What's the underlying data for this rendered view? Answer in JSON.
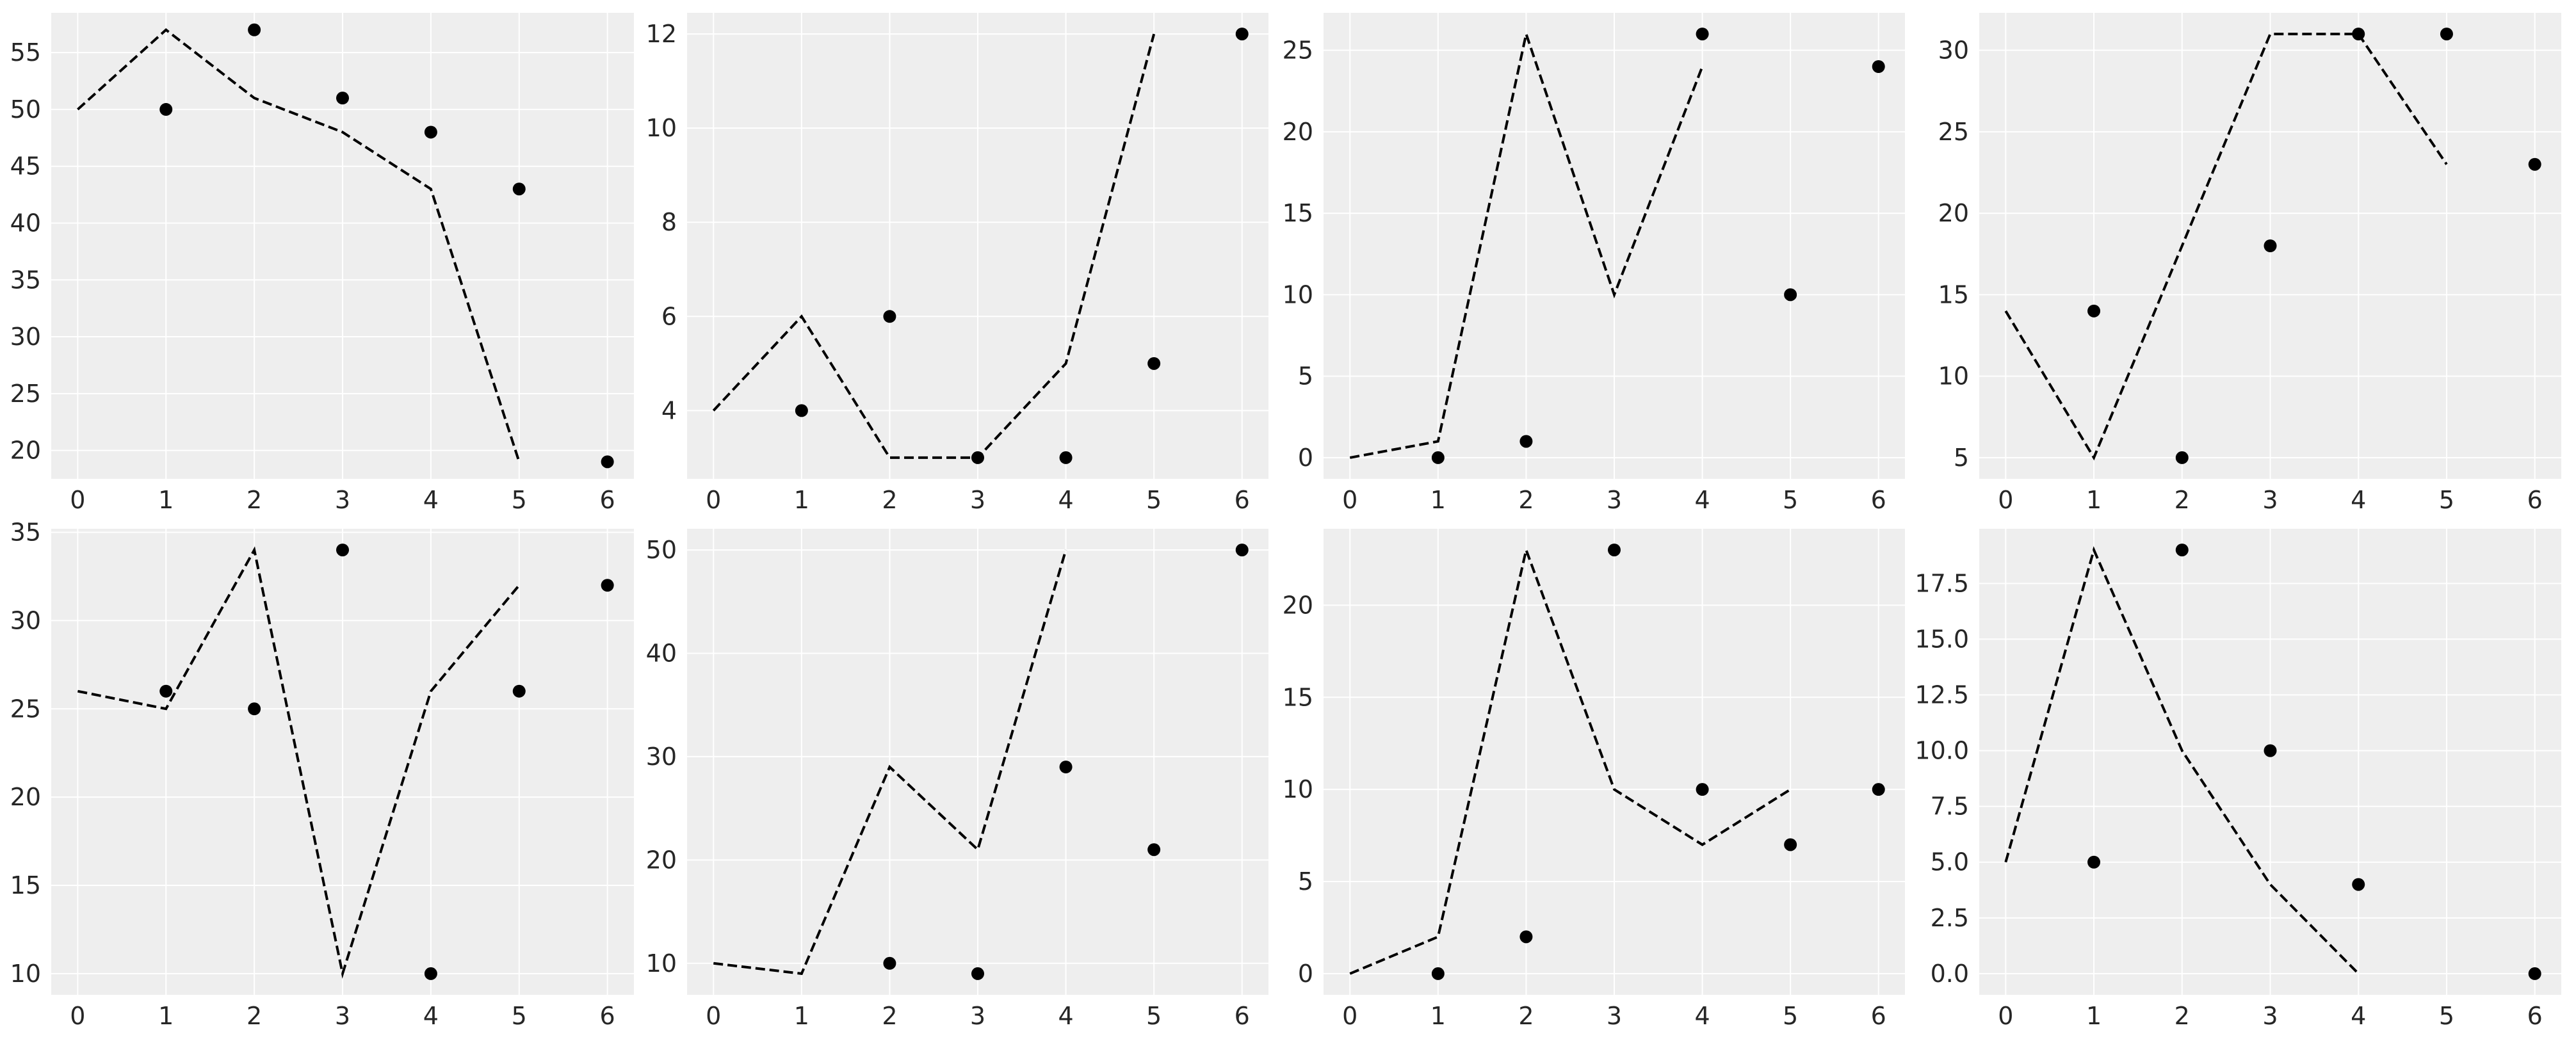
{
  "chart_data": [
    {
      "type": "line",
      "title": "",
      "xlabel": "",
      "ylabel": "",
      "xlim": [
        -0.3,
        6.3
      ],
      "ylim": [
        17.5,
        58.5
      ],
      "xticks": [
        0,
        1,
        2,
        3,
        4,
        5,
        6
      ],
      "yticks": [
        20,
        25,
        30,
        35,
        40,
        45,
        50,
        55
      ],
      "series": [
        {
          "name": "line",
          "style": "dashed",
          "x": [
            0,
            1,
            2,
            3,
            4,
            5
          ],
          "y": [
            50,
            57,
            51,
            48,
            43,
            19
          ]
        },
        {
          "name": "points",
          "style": "markers",
          "x": [
            1,
            2,
            3,
            4,
            5,
            6
          ],
          "y": [
            50,
            57,
            51,
            48,
            43,
            19
          ]
        }
      ]
    },
    {
      "type": "line",
      "title": "",
      "xlabel": "",
      "ylabel": "",
      "xlim": [
        -0.3,
        6.3
      ],
      "ylim": [
        2.55,
        12.45
      ],
      "xticks": [
        0,
        1,
        2,
        3,
        4,
        5,
        6
      ],
      "yticks": [
        4,
        6,
        8,
        10,
        12
      ],
      "series": [
        {
          "name": "line",
          "style": "dashed",
          "x": [
            0,
            1,
            2,
            3,
            4,
            5
          ],
          "y": [
            4,
            6,
            3,
            3,
            5,
            12
          ]
        },
        {
          "name": "points",
          "style": "markers",
          "x": [
            1,
            2,
            3,
            4,
            5,
            6
          ],
          "y": [
            4,
            6,
            3,
            3,
            5,
            12
          ]
        }
      ]
    },
    {
      "type": "line",
      "title": "",
      "xlabel": "",
      "ylabel": "",
      "xlim": [
        -0.3,
        6.3
      ],
      "ylim": [
        -1.3,
        27.3
      ],
      "xticks": [
        0,
        1,
        2,
        3,
        4,
        5,
        6
      ],
      "yticks": [
        0,
        5,
        10,
        15,
        20,
        25
      ],
      "series": [
        {
          "name": "line",
          "style": "dashed",
          "x": [
            0,
            1,
            2,
            3,
            4
          ],
          "y": [
            0,
            1,
            26,
            10,
            24
          ]
        },
        {
          "name": "points",
          "style": "markers",
          "x": [
            1,
            2,
            4,
            5,
            6
          ],
          "y": [
            0,
            1,
            26,
            10,
            24
          ]
        }
      ]
    },
    {
      "type": "line",
      "title": "",
      "xlabel": "",
      "ylabel": "",
      "xlim": [
        -0.3,
        6.3
      ],
      "ylim": [
        3.7,
        32.3
      ],
      "xticks": [
        0,
        1,
        2,
        3,
        4,
        5,
        6
      ],
      "yticks": [
        5,
        10,
        15,
        20,
        25,
        30
      ],
      "series": [
        {
          "name": "line",
          "style": "dashed",
          "x": [
            0,
            1,
            2,
            3,
            4,
            5
          ],
          "y": [
            14,
            5,
            18,
            31,
            31,
            23
          ]
        },
        {
          "name": "points",
          "style": "markers",
          "x": [
            1,
            2,
            3,
            4,
            5,
            6
          ],
          "y": [
            14,
            5,
            18,
            31,
            31,
            23
          ]
        }
      ]
    },
    {
      "type": "line",
      "title": "",
      "xlabel": "",
      "ylabel": "",
      "xlim": [
        -0.3,
        6.3
      ],
      "ylim": [
        8.8,
        35.2
      ],
      "xticks": [
        0,
        1,
        2,
        3,
        4,
        5,
        6
      ],
      "yticks": [
        10,
        15,
        20,
        25,
        30,
        35
      ],
      "series": [
        {
          "name": "line",
          "style": "dashed",
          "x": [
            0,
            1,
            2,
            3,
            4,
            5
          ],
          "y": [
            26,
            25,
            34,
            10,
            26,
            32
          ]
        },
        {
          "name": "points",
          "style": "markers",
          "x": [
            1,
            2,
            3,
            4,
            5,
            6
          ],
          "y": [
            26,
            25,
            34,
            10,
            26,
            32
          ]
        }
      ]
    },
    {
      "type": "line",
      "title": "",
      "xlabel": "",
      "ylabel": "",
      "xlim": [
        -0.3,
        6.3
      ],
      "ylim": [
        6.95,
        52.05
      ],
      "xticks": [
        0,
        1,
        2,
        3,
        4,
        5,
        6
      ],
      "yticks": [
        10,
        20,
        30,
        40,
        50
      ],
      "series": [
        {
          "name": "line",
          "style": "dashed",
          "x": [
            0,
            1,
            2,
            3,
            4
          ],
          "y": [
            10,
            9,
            29,
            21,
            50
          ]
        },
        {
          "name": "points",
          "style": "markers",
          "x": [
            2,
            3,
            4,
            5,
            6
          ],
          "y": [
            10,
            9,
            29,
            21,
            50
          ]
        }
      ]
    },
    {
      "type": "line",
      "title": "",
      "xlabel": "",
      "ylabel": "",
      "xlim": [
        -0.3,
        6.3
      ],
      "ylim": [
        -1.15,
        24.15
      ],
      "xticks": [
        0,
        1,
        2,
        3,
        4,
        5,
        6
      ],
      "yticks": [
        0,
        5,
        10,
        15,
        20
      ],
      "series": [
        {
          "name": "line",
          "style": "dashed",
          "x": [
            0,
            1,
            2,
            3,
            4,
            5
          ],
          "y": [
            0,
            2,
            23,
            10,
            7,
            10
          ]
        },
        {
          "name": "points",
          "style": "markers",
          "x": [
            1,
            2,
            3,
            4,
            5,
            6
          ],
          "y": [
            0,
            2,
            23,
            10,
            7,
            10
          ]
        }
      ]
    },
    {
      "type": "line",
      "title": "",
      "xlabel": "",
      "ylabel": "",
      "xlim": [
        -0.3,
        6.3
      ],
      "ylim": [
        -0.95,
        19.95
      ],
      "xticks": [
        0,
        1,
        2,
        3,
        4,
        5,
        6
      ],
      "yticks": [
        0,
        2.5,
        5,
        7.5,
        10,
        12.5,
        15,
        17.5
      ],
      "ytick_labels": [
        "0.0",
        "2.5",
        "5.0",
        "7.5",
        "10.0",
        "12.5",
        "15.0",
        "17.5"
      ],
      "series": [
        {
          "name": "line",
          "style": "dashed",
          "x": [
            0,
            1,
            2,
            3,
            4
          ],
          "y": [
            5,
            19,
            10,
            4,
            0
          ]
        },
        {
          "name": "points",
          "style": "markers",
          "x": [
            1,
            2,
            3,
            4,
            6
          ],
          "y": [
            5,
            19,
            10,
            4,
            0
          ]
        }
      ]
    }
  ]
}
